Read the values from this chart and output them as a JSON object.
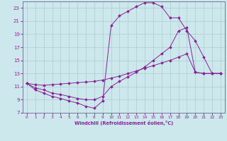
{
  "xlabel": "Windchill (Refroidissement éolien,°C)",
  "xlim": [
    -0.5,
    23.5
  ],
  "ylim": [
    7,
    24
  ],
  "xticks": [
    0,
    1,
    2,
    3,
    4,
    5,
    6,
    7,
    8,
    9,
    10,
    11,
    12,
    13,
    14,
    15,
    16,
    17,
    18,
    19,
    20,
    21,
    22,
    23
  ],
  "yticks": [
    7,
    9,
    11,
    13,
    15,
    17,
    19,
    21,
    23
  ],
  "bg_color": "#cce8ec",
  "grid_color": "#aacccc",
  "line_color": "#882299",
  "line1_x": [
    0,
    1,
    2,
    3,
    4,
    5,
    6,
    7,
    8,
    9,
    10,
    11,
    12,
    13,
    14,
    15,
    16,
    17,
    18,
    19,
    20,
    21,
    22,
    23
  ],
  "line1_y": [
    11.5,
    10.5,
    10.0,
    9.5,
    9.2,
    8.8,
    8.5,
    8.0,
    7.7,
    8.8,
    20.3,
    21.8,
    22.5,
    23.2,
    23.8,
    23.8,
    23.2,
    21.5,
    21.5,
    19.5,
    18.0,
    15.5,
    13.0,
    13.0
  ],
  "line2_x": [
    0,
    1,
    2,
    3,
    4,
    5,
    6,
    7,
    8,
    9,
    10,
    11,
    12,
    13,
    14,
    15,
    16,
    17,
    18,
    19,
    20,
    21,
    22,
    23
  ],
  "line2_y": [
    11.5,
    10.8,
    10.5,
    10.0,
    9.8,
    9.5,
    9.2,
    9.0,
    9.0,
    9.5,
    11.0,
    11.8,
    12.5,
    13.2,
    14.0,
    15.0,
    16.0,
    17.0,
    19.5,
    20.0,
    13.2,
    13.0,
    13.0,
    13.0
  ],
  "line3_x": [
    0,
    1,
    2,
    3,
    4,
    5,
    6,
    7,
    8,
    9,
    10,
    11,
    12,
    13,
    14,
    15,
    16,
    17,
    18,
    19,
    20,
    21,
    22,
    23
  ],
  "line3_y": [
    11.5,
    11.3,
    11.2,
    11.3,
    11.4,
    11.5,
    11.6,
    11.7,
    11.8,
    12.0,
    12.3,
    12.6,
    13.0,
    13.4,
    13.8,
    14.2,
    14.6,
    15.0,
    15.5,
    16.0,
    13.2,
    13.0,
    13.0,
    13.0
  ]
}
